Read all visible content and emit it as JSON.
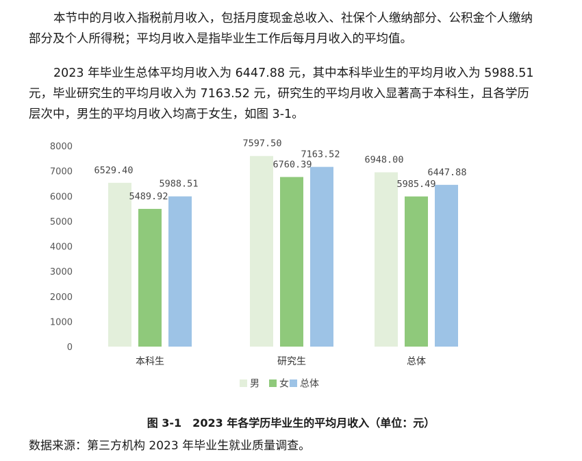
{
  "intro": {
    "paragraph1": "本节中的月收入指税前月收入，包括月度现金总收入、社保个人缴纳部分、公积金个人缴纳部分及个人所得税；平均月收入是指毕业生工作后每月月收入的平均值。",
    "paragraph2": "2023 年毕业生总体平均月收入为 6447.88 元，其中本科毕业生的平均月收入为 5988.51 元，毕业研究生的平均月收入为 7163.52 元，研究生的平均月收入显著高于本科生，且各学历层次中，男生的平均月收入均高于女生，如图 3-1。"
  },
  "chart_data": {
    "type": "bar",
    "categories": [
      "本科生",
      "研究生",
      "总体"
    ],
    "series": [
      {
        "name": "男",
        "values": [
          6529.4,
          7597.5,
          6948.0
        ],
        "color": "#e3efdb"
      },
      {
        "name": "女",
        "values": [
          5489.92,
          6760.39,
          5985.49
        ],
        "color": "#8fc97b"
      },
      {
        "name": "总体",
        "values": [
          5988.51,
          7163.52,
          6447.88
        ],
        "color": "#9dc3e6"
      }
    ],
    "value_labels": [
      [
        "6529.40",
        "7597.50",
        "6948.00"
      ],
      [
        "5489.92",
        "6760.39",
        "5985.49"
      ],
      [
        "5988.51",
        "7163.52",
        "6447.88"
      ]
    ],
    "yticks": [
      "0",
      "1000",
      "2000",
      "3000",
      "4000",
      "5000",
      "6000",
      "7000",
      "8000"
    ],
    "ylim": [
      0,
      8000
    ],
    "grid": false,
    "legend_position": "bottom-center",
    "title": "图 3-1　2023 年各学历毕业生的平均月收入（单位：元）"
  },
  "source_note": "数据来源：第三方机构 2023 年毕业生就业质量调查。"
}
